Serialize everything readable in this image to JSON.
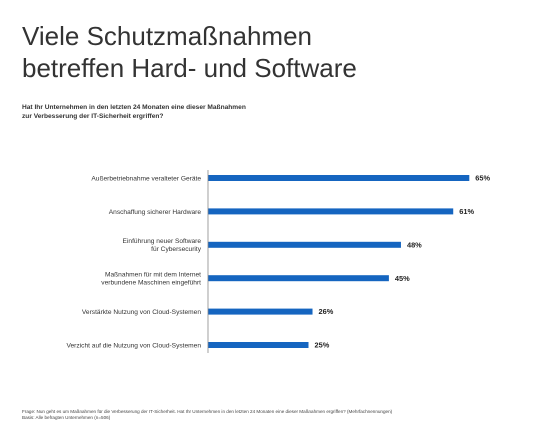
{
  "title_lines": [
    "Viele Schutzmaßnahmen",
    "betreffen Hard- und Software"
  ],
  "question_lines": [
    "Hat Ihr Unternehmen in den letzten 24 Monaten eine dieser Maßnahmen",
    "zur Verbesserung der IT-Sicherheit ergriffen?"
  ],
  "colors": {
    "bar": "#1565c0"
  },
  "chart_data": {
    "type": "bar",
    "orientation": "horizontal",
    "categories": [
      [
        "Außerbetriebnahme veralteter Geräte"
      ],
      [
        "Anschaffung sicherer Hardware"
      ],
      [
        "Einführung neuer Software",
        "für Cybersecurity"
      ],
      [
        "Maßnahmen für mit dem Internet",
        "verbundene Maschinen eingeführt"
      ],
      [
        "Verstärkte Nutzung von Cloud-Systemen"
      ],
      [
        "Verzicht auf die Nutzung von Cloud-Systemen"
      ]
    ],
    "values": [
      65,
      61,
      48,
      45,
      26,
      25
    ],
    "value_labels": [
      "65%",
      "61%",
      "48%",
      "45%",
      "26%",
      "25%"
    ],
    "xlim": [
      0,
      100
    ],
    "grid": false,
    "legend": false
  },
  "footnote_lines": [
    "Frage: Nun geht es um Maßnahmen für die Verbesserung der IT-Sicherheit. Hat Ihr Unternehmen in den letzten 24 Monaten eine dieser Maßnahmen ergriffen? (Mehrfachnennungen)",
    "Basis: Alle befragten Unternehmen (n=506)"
  ]
}
